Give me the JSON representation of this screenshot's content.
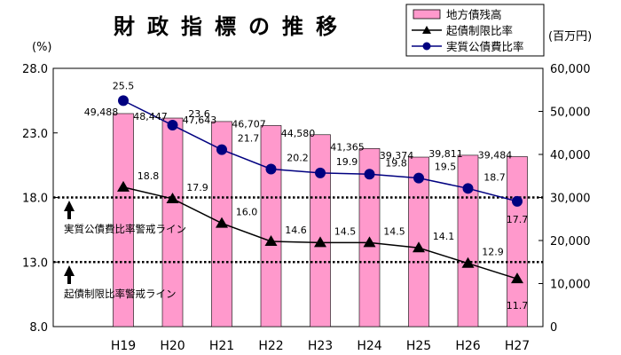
{
  "chart_data": {
    "type": "bar+line",
    "title": "財政指標の推移",
    "categories": [
      "H19",
      "H20",
      "H21",
      "H22",
      "H23",
      "H24",
      "H25",
      "H26",
      "H27"
    ],
    "left_axis": {
      "unit": "(%)",
      "ylim": [
        8.0,
        28.0
      ],
      "ticks": [
        "8.0",
        "13.0",
        "18.0",
        "23.0",
        "28.0"
      ]
    },
    "right_axis": {
      "unit": "(百万円)",
      "ylim": [
        0,
        60000
      ],
      "ticks": [
        "0",
        "10,000",
        "20,000",
        "30,000",
        "40,000",
        "50,000",
        "60,000"
      ]
    },
    "series": [
      {
        "name": "地方債残高",
        "type": "bar",
        "axis": "right",
        "color": "#ff99cc",
        "values": [
          49488,
          48447,
          47643,
          46707,
          44580,
          41365,
          39374,
          39811,
          39484
        ],
        "labels": [
          "49,488",
          "48,447",
          "47,643",
          "46,707",
          "44,580",
          "41,365",
          "39,374",
          "39,811",
          "39,484"
        ]
      },
      {
        "name": "起債制限比率",
        "type": "line",
        "axis": "left",
        "marker": "triangle",
        "color": "#000000",
        "values": [
          18.8,
          17.9,
          16.0,
          14.6,
          14.5,
          14.5,
          14.1,
          12.9,
          11.7
        ],
        "labels": [
          "18.8",
          "17.9",
          "16.0",
          "14.6",
          "14.5",
          "14.5",
          "14.1",
          "12.9",
          "11.7"
        ]
      },
      {
        "name": "実質公債費比率",
        "type": "line",
        "axis": "left",
        "marker": "circle",
        "color": "#000080",
        "values": [
          25.5,
          23.6,
          21.7,
          20.2,
          19.9,
          19.8,
          19.5,
          18.7,
          17.7
        ],
        "labels": [
          "25.5",
          "23.6",
          "21.7",
          "20.2",
          "19.9",
          "19.8",
          "19.5",
          "18.7",
          "17.7"
        ]
      }
    ],
    "reference_lines": [
      {
        "value": 18.0,
        "label": "実質公債費比率警戒ライン",
        "style": "dotted"
      },
      {
        "value": 13.0,
        "label": "起債制限比率警戒ライン",
        "style": "dotted"
      }
    ],
    "legend": "top-right",
    "grid": false
  }
}
